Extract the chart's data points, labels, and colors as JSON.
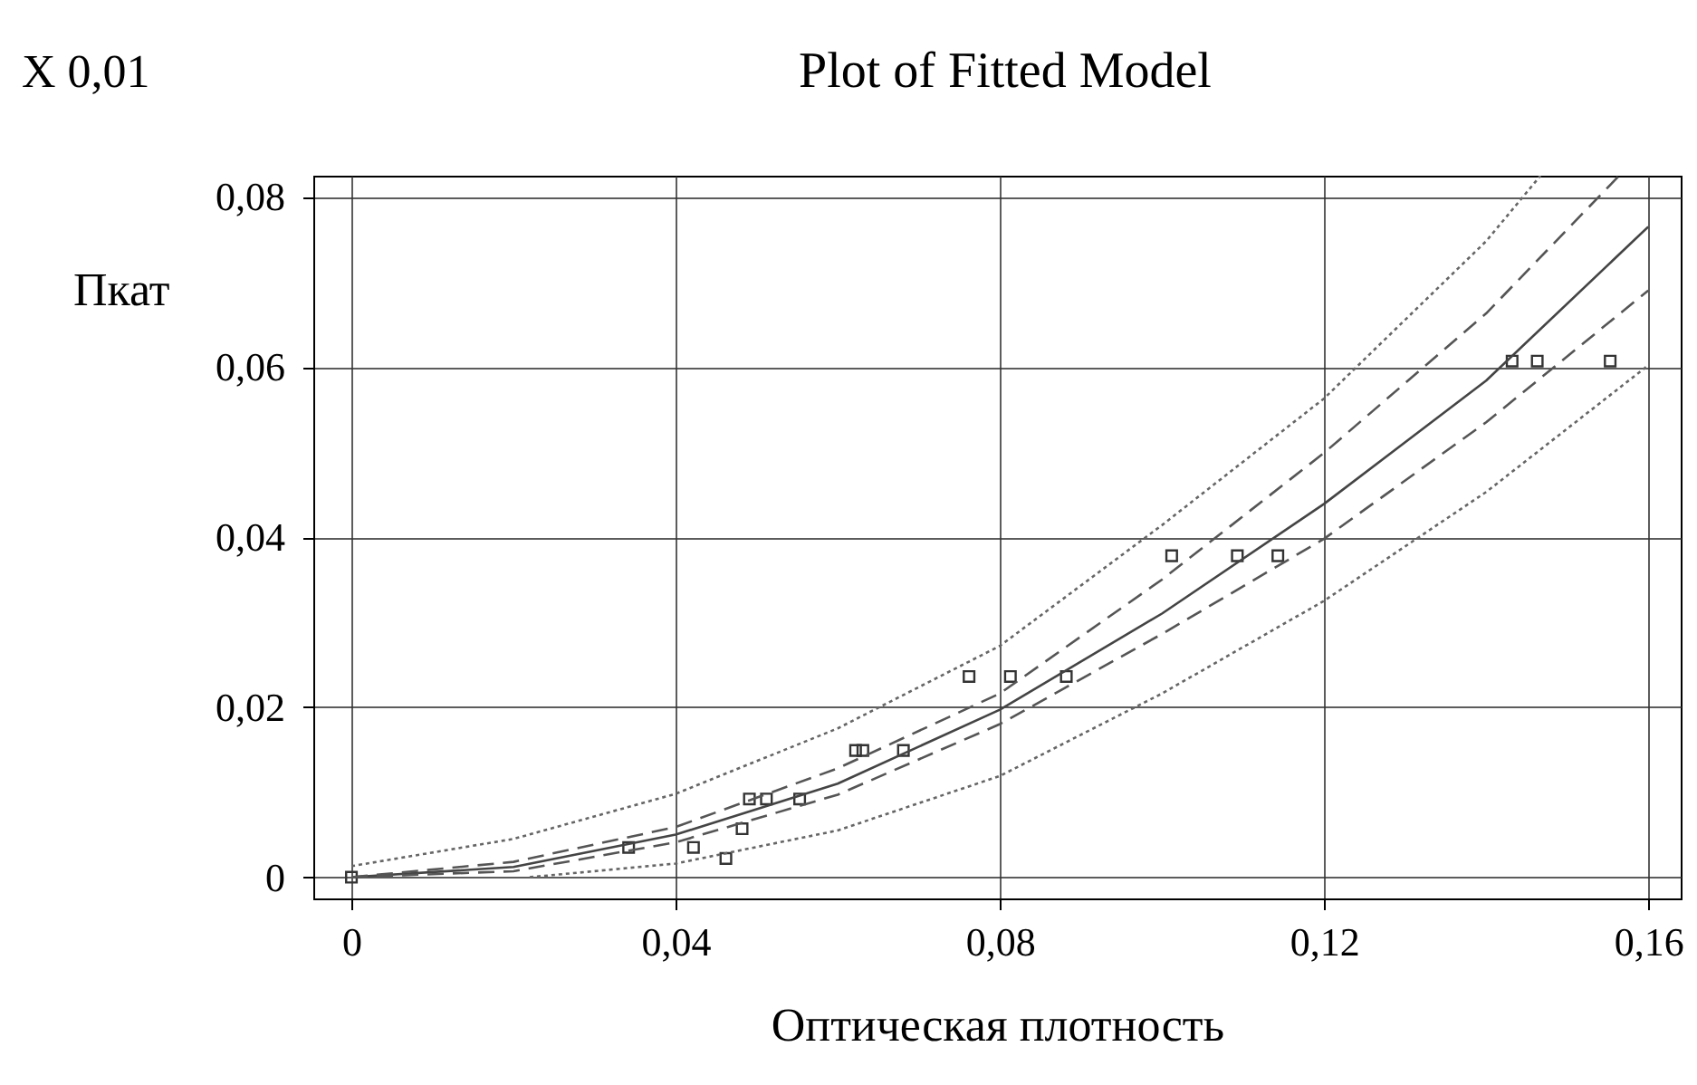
{
  "chart_data": {
    "type": "scatter",
    "title": "Plot of Fitted Model",
    "xlabel": "Оптическая плотность",
    "ylabel": "Пкат",
    "annotations": [
      "X 0,01"
    ],
    "xlim": [
      -0.0047,
      0.164
    ],
    "ylim": [
      -0.0025,
      0.0825
    ],
    "xticks": [
      0,
      {
        "value": 0.04,
        "label": "0,04"
      },
      {
        "value": 0.08,
        "label": "0,08"
      },
      {
        "value": 0.12,
        "label": "0,12"
      },
      {
        "value": 0.16,
        "label": "0,16"
      }
    ],
    "yticks": [
      0,
      {
        "value": 0.02,
        "label": "0,02"
      },
      {
        "value": 0.04,
        "label": "0,04"
      },
      {
        "value": 0.06,
        "label": "0,06"
      },
      {
        "value": 0.08,
        "label": "0,08"
      }
    ],
    "grid": true,
    "series": [
      {
        "type": "scatter",
        "marker": "square",
        "color": "#333333",
        "x": [
          0,
          0.0342,
          0.0422,
          0.0462,
          0.0482,
          0.0491,
          0.0512,
          0.0553,
          0.0622,
          0.0631,
          0.0681,
          0.0762,
          0.0813,
          0.0882,
          0.1012,
          0.1093,
          0.1143,
          0.1432,
          0.1463,
          0.1553
        ],
        "values": [
          0,
          0.0035,
          0.0035,
          0.0022,
          0.0057,
          0.0092,
          0.0092,
          0.0092,
          0.0149,
          0.0149,
          0.0149,
          0.0236,
          0.0236,
          0.0236,
          0.0378,
          0.0378,
          0.0378,
          0.0607,
          0.0607,
          0.0607
        ]
      },
      {
        "type": "line",
        "line_style": "solid",
        "color": "#444444",
        "x": [
          0,
          0.02,
          0.04,
          0.06,
          0.08,
          0.1,
          0.12,
          0.14,
          0.16
        ],
        "values": [
          0,
          0.0012,
          0.005,
          0.011,
          0.0197,
          0.031,
          0.0439,
          0.0584,
          0.0765
        ]
      },
      {
        "type": "line",
        "line_style": "dashed",
        "color": "#555555",
        "x": [
          0,
          0.02,
          0.04,
          0.06,
          0.08,
          0.1,
          0.12,
          0.14,
          0.1564
        ],
        "values": [
          0,
          0.0018,
          0.0059,
          0.0128,
          0.0216,
          0.035,
          0.0499,
          0.0663,
          0.0825
        ]
      },
      {
        "type": "line",
        "line_style": "dashed",
        "color": "#555555",
        "x": [
          0,
          0.02,
          0.04,
          0.06,
          0.08,
          0.1,
          0.12,
          0.14,
          0.16
        ],
        "values": [
          0,
          0.0007,
          0.0041,
          0.0097,
          0.018,
          0.0286,
          0.0398,
          0.0535,
          0.069
        ]
      },
      {
        "type": "line",
        "line_style": "dotted",
        "color": "#666666",
        "x": [
          0,
          0.02,
          0.04,
          0.06,
          0.08,
          0.1,
          0.12,
          0.14,
          0.1467
        ],
        "values": [
          0.0013,
          0.0045,
          0.0098,
          0.0175,
          0.0272,
          0.0414,
          0.0563,
          0.0748,
          0.0825
        ]
      },
      {
        "type": "line",
        "line_style": "dotted",
        "color": "#666666",
        "x": [
          0.022,
          0.04,
          0.06,
          0.08,
          0.1,
          0.12,
          0.14,
          0.16
        ],
        "values": [
          0,
          0.0016,
          0.0055,
          0.0119,
          0.0216,
          0.0325,
          0.0453,
          0.0602
        ]
      }
    ]
  }
}
